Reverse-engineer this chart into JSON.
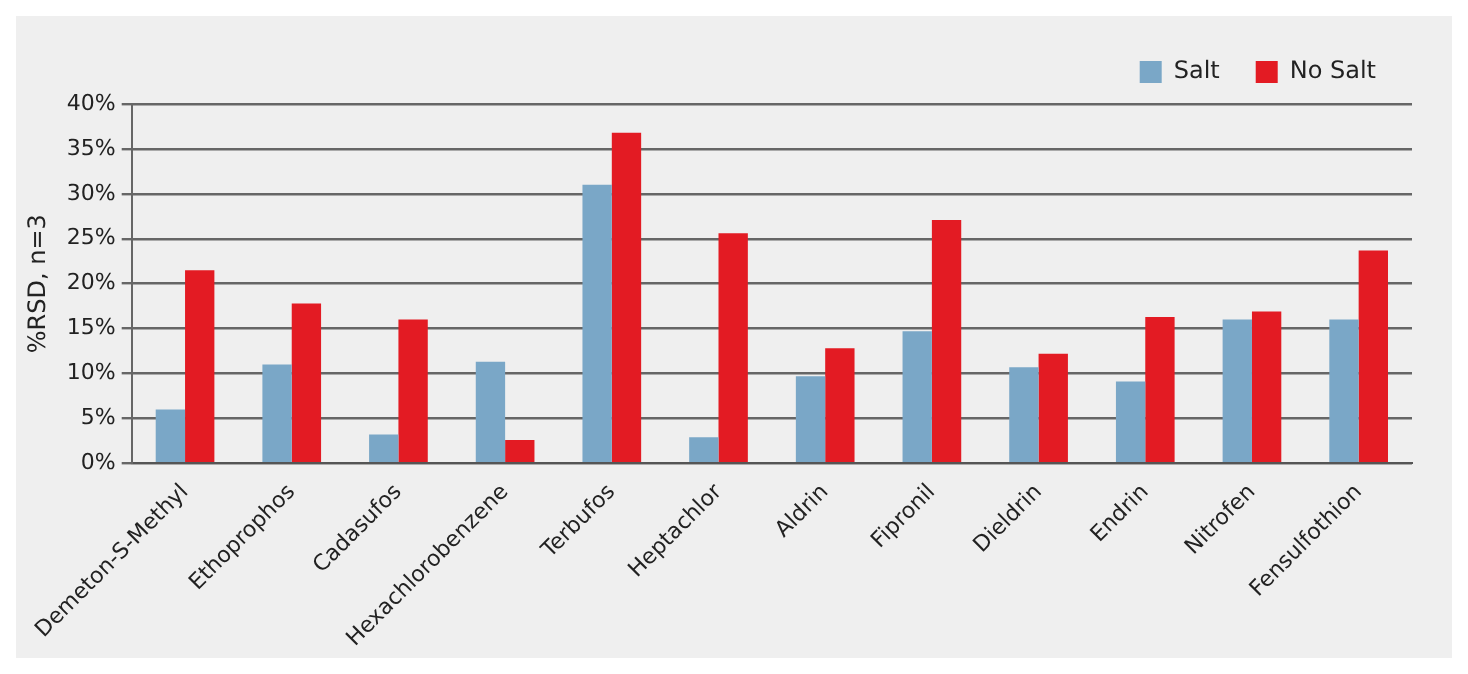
{
  "chart_data": {
    "type": "bar",
    "ylabel": "%RSD, n=3",
    "categories": [
      "Demeton-S-Methyl",
      "Ethoprophos",
      "Cadasufos",
      "Hexachlorobenzene",
      "Terbufos",
      "Heptachlor",
      "Aldrin",
      "Fipronil",
      "Dieldrin",
      "Endrin",
      "Nitrofen",
      "Fensulfothion"
    ],
    "series": [
      {
        "name": "Salt",
        "color": "#7aa7c7",
        "values": [
          6,
          11,
          3.2,
          11.3,
          31,
          2.9,
          9.7,
          14.7,
          10.7,
          9.1,
          16,
          16
        ]
      },
      {
        "name": "No Salt",
        "color": "#e31b23",
        "values": [
          21.5,
          17.8,
          16,
          2.6,
          36.8,
          25.6,
          12.8,
          27.1,
          12.2,
          16.3,
          16.9,
          23.7
        ]
      }
    ],
    "ylim": [
      0,
      40
    ],
    "yticks": [
      {
        "value": 0,
        "label": "0%"
      },
      {
        "value": 5,
        "label": "5%"
      },
      {
        "value": 10,
        "label": "10%"
      },
      {
        "value": 15,
        "label": "15%"
      },
      {
        "value": 20,
        "label": "20%"
      },
      {
        "value": 25,
        "label": "25%"
      },
      {
        "value": 30,
        "label": "30%"
      },
      {
        "value": 35,
        "label": "35%"
      },
      {
        "value": 40,
        "label": "40%"
      }
    ],
    "grid": "y",
    "legend": "top right"
  }
}
